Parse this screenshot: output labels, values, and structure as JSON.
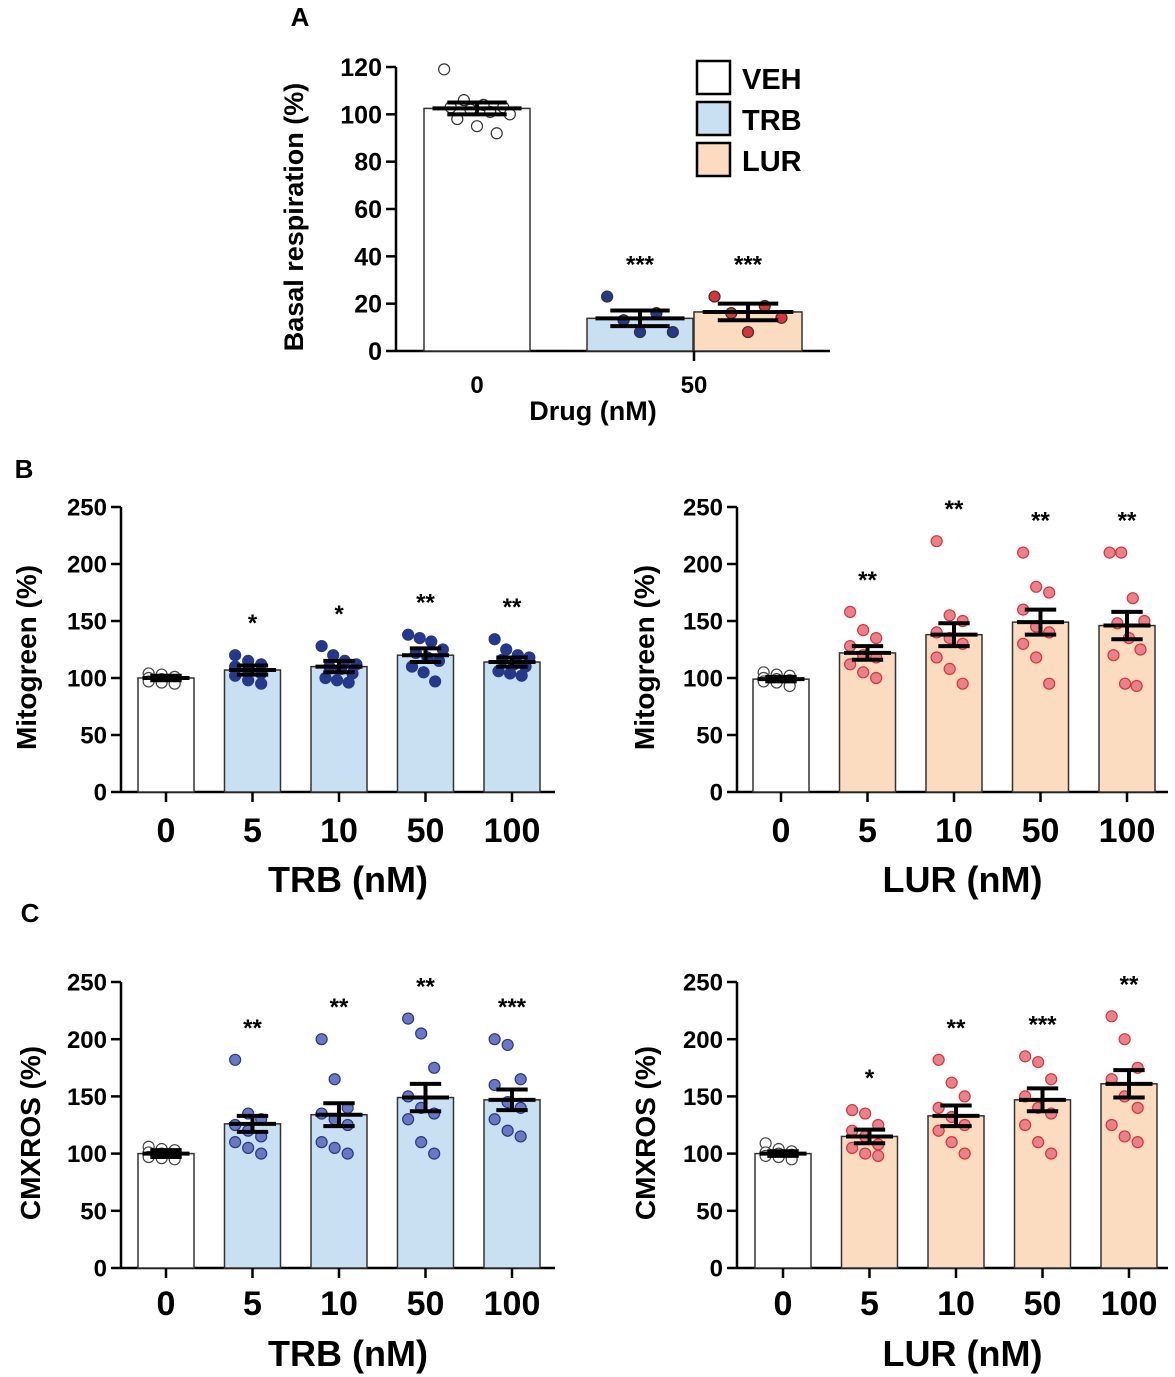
{
  "panel_labels": {
    "a": "A",
    "b": "B",
    "c": "C"
  },
  "colors": {
    "veh_fill": "#ffffff",
    "trb_fill": "#c9dff2",
    "lur_fill": "#fbdcc0",
    "trb_dot": "#26388a",
    "trb_dot_light": "#6a78c2",
    "lur_dot": "#d9343a",
    "lur_dot_light": "#e8828a",
    "veh_dot": "#ffffff",
    "axis": "#000000"
  },
  "legend": [
    {
      "label": "VEH",
      "color_key": "veh_fill"
    },
    {
      "label": "TRB",
      "color_key": "trb_fill"
    },
    {
      "label": "LUR",
      "color_key": "lur_fill"
    }
  ],
  "chart_data": [
    {
      "id": "A",
      "type": "bar",
      "xlabel": "Drug (nM)",
      "ylabel": "Basal respiration (%)",
      "ylim": [
        0,
        120
      ],
      "yticks": [
        "0",
        "20",
        "40",
        "60",
        "80",
        "100",
        "120"
      ],
      "xticks": [
        "0",
        "50"
      ],
      "bars": [
        {
          "group": "0",
          "series": "VEH",
          "value": 102.5,
          "sem": 2.5,
          "sig": "",
          "points": [
            119,
            106,
            104,
            103,
            103,
            102,
            101,
            100,
            98,
            95,
            92
          ]
        },
        {
          "group": "50",
          "series": "TRB",
          "value": 13.8,
          "sem": 3.3,
          "sig": "***",
          "points": [
            23,
            16,
            13,
            8,
            8
          ]
        },
        {
          "group": "50",
          "series": "LUR",
          "value": 16.5,
          "sem": 3.5,
          "sig": "***",
          "points": [
            23,
            19,
            16,
            14,
            8
          ]
        }
      ]
    },
    {
      "id": "B-TRB",
      "type": "bar",
      "xlabel": "TRB (nM)",
      "ylabel": "Mitogreen (%)",
      "ylim": [
        0,
        250
      ],
      "yticks": [
        "0",
        "50",
        "100",
        "150",
        "200",
        "250"
      ],
      "categories": [
        "0",
        "5",
        "10",
        "50",
        "100"
      ],
      "series": [
        {
          "name": "TRB",
          "values": [
            100,
            107,
            110,
            120,
            114
          ]
        }
      ],
      "sem": [
        2,
        4,
        5,
        6,
        4
      ],
      "significance": [
        "",
        "*",
        "*",
        "**",
        "**"
      ],
      "points": [
        [
          104,
          103,
          101,
          100,
          99,
          98,
          97,
          96,
          95
        ],
        [
          120,
          115,
          112,
          110,
          107,
          104,
          102,
          98,
          95
        ],
        [
          128,
          120,
          115,
          112,
          110,
          108,
          104,
          100,
          98,
          96
        ],
        [
          138,
          135,
          132,
          125,
          122,
          118,
          115,
          110,
          105,
          97
        ],
        [
          134,
          125,
          120,
          118,
          116,
          112,
          110,
          106,
          104,
          102
        ]
      ]
    },
    {
      "id": "B-LUR",
      "type": "bar",
      "xlabel": "LUR (nM)",
      "ylabel": "Mitogreen (%)",
      "ylim": [
        0,
        250
      ],
      "yticks": [
        "0",
        "50",
        "100",
        "150",
        "200",
        "250"
      ],
      "categories": [
        "0",
        "5",
        "10",
        "50",
        "100"
      ],
      "series": [
        {
          "name": "LUR",
          "values": [
            99,
            122,
            138,
            149,
            146
          ]
        }
      ],
      "sem": [
        2,
        6,
        10,
        11,
        12
      ],
      "significance": [
        "",
        "**",
        "**",
        "**",
        "**"
      ],
      "points": [
        [
          105,
          103,
          102,
          100,
          99,
          98,
          97,
          96,
          93
        ],
        [
          158,
          142,
          135,
          128,
          120,
          118,
          112,
          105,
          100
        ],
        [
          220,
          155,
          150,
          140,
          135,
          130,
          118,
          108,
          95
        ],
        [
          210,
          180,
          175,
          160,
          145,
          140,
          130,
          118,
          95
        ],
        [
          210,
          210,
          170,
          150,
          148,
          135,
          125,
          120,
          95,
          93
        ]
      ]
    },
    {
      "id": "C-TRB",
      "type": "bar",
      "xlabel": "TRB (nM)",
      "ylabel": "CMXROS  (%)",
      "ylim": [
        0,
        250
      ],
      "yticks": [
        "0",
        "50",
        "100",
        "150",
        "200",
        "250"
      ],
      "categories": [
        "0",
        "5",
        "10",
        "50",
        "100"
      ],
      "series": [
        {
          "name": "TRB",
          "values": [
            100,
            126,
            134,
            149,
            147
          ]
        }
      ],
      "sem": [
        3,
        7,
        10,
        12,
        9
      ],
      "significance": [
        "",
        "**",
        "**",
        "**",
        "***"
      ],
      "points": [
        [
          106,
          104,
          103,
          101,
          100,
          99,
          97,
          96,
          95
        ],
        [
          182,
          135,
          130,
          125,
          120,
          115,
          110,
          105,
          100
        ],
        [
          200,
          165,
          140,
          135,
          130,
          125,
          110,
          105,
          100
        ],
        [
          218,
          205,
          175,
          150,
          140,
          135,
          130,
          110,
          100
        ],
        [
          200,
          195,
          165,
          160,
          145,
          140,
          130,
          120,
          115
        ]
      ]
    },
    {
      "id": "C-LUR",
      "type": "bar",
      "xlabel": "LUR (nM)",
      "ylabel": "CMXROS  (%)",
      "ylim": [
        0,
        250
      ],
      "yticks": [
        "0",
        "50",
        "100",
        "150",
        "200",
        "250"
      ],
      "categories": [
        "0",
        "5",
        "10",
        "50",
        "100"
      ],
      "series": [
        {
          "name": "LUR",
          "values": [
            100,
            115,
            133,
            147,
            161
          ]
        }
      ],
      "sem": [
        2,
        6,
        9,
        10,
        12
      ],
      "significance": [
        "",
        "*",
        "**",
        "***",
        "**"
      ],
      "points": [
        [
          109,
          104,
          102,
          101,
          100,
          99,
          98,
          97,
          95
        ],
        [
          138,
          135,
          125,
          120,
          115,
          108,
          105,
          100,
          98
        ],
        [
          182,
          162,
          150,
          140,
          132,
          125,
          120,
          110,
          100
        ],
        [
          185,
          180,
          165,
          150,
          140,
          135,
          125,
          110,
          100
        ],
        [
          220,
          200,
          175,
          165,
          150,
          140,
          125,
          115,
          110
        ]
      ]
    }
  ]
}
